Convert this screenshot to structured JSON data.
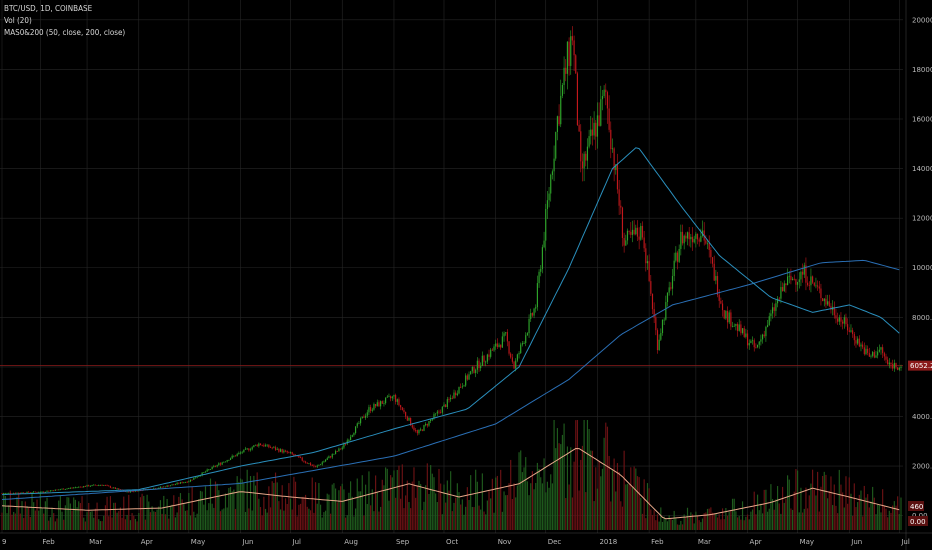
{
  "legend": {
    "symbol": "BTC/USD, 1D, COINBASE",
    "volume": "Vol (20)",
    "ma": "MAS0&200 (50, close, 200, close)"
  },
  "colors": {
    "background": "#000000",
    "up": "#2fa52b",
    "down": "#c2181c",
    "ma50": "#2a8fbd",
    "ma200": "#2a6fb5",
    "vol_ma": "#e8a88a",
    "price_line": "#8b1a1a",
    "grid": "#262626"
  },
  "chart_data": {
    "type": "candlestick",
    "title": "BTC/USD, 1D, COINBASE",
    "x": {
      "ticks": [
        "9",
        "Feb",
        "Mar",
        "Apr",
        "May",
        "Jun",
        "Jul",
        "Aug",
        "Sep",
        "Oct",
        "Nov",
        "Dec",
        "2018",
        "Feb",
        "Mar",
        "Apr",
        "May",
        "Jun",
        "Jul"
      ],
      "range": [
        "2017-01-09",
        "2018-07-02"
      ]
    },
    "y": {
      "ticks": [
        "20000.00",
        "18000.00",
        "16000.00",
        "14000.00",
        "12000.00",
        "10000.00",
        "8000.00",
        "6000.00",
        "4000.00",
        "2000.00",
        "0.00"
      ],
      "tick_values": [
        20000,
        18000,
        16000,
        14000,
        12000,
        10000,
        8000,
        6000,
        4000,
        2000,
        0
      ],
      "ylim": [
        -700,
        20800
      ]
    },
    "current_price": {
      "value": 6052,
      "label": "6052.20"
    },
    "volume_badges": [
      "460",
      "0.00"
    ],
    "price_anchors": [
      [
        "2017-01-09",
        900
      ],
      [
        "2017-02-01",
        960
      ],
      [
        "2017-03-01",
        1200
      ],
      [
        "2017-03-10",
        1250
      ],
      [
        "2017-03-25",
        950
      ],
      [
        "2017-04-15",
        1150
      ],
      [
        "2017-05-01",
        1400
      ],
      [
        "2017-05-25",
        2300
      ],
      [
        "2017-06-12",
        2900
      ],
      [
        "2017-07-01",
        2500
      ],
      [
        "2017-07-16",
        1950
      ],
      [
        "2017-08-01",
        2750
      ],
      [
        "2017-08-17",
        4300
      ],
      [
        "2017-09-01",
        4800
      ],
      [
        "2017-09-15",
        3300
      ],
      [
        "2017-10-01",
        4400
      ],
      [
        "2017-10-20",
        6000
      ],
      [
        "2017-11-07",
        7200
      ],
      [
        "2017-11-12",
        6000
      ],
      [
        "2017-11-25",
        8500
      ],
      [
        "2017-12-08",
        16000
      ],
      [
        "2017-12-17",
        19500
      ],
      [
        "2017-12-22",
        13800
      ],
      [
        "2018-01-06",
        17000
      ],
      [
        "2018-01-17",
        11000
      ],
      [
        "2018-01-28",
        11500
      ],
      [
        "2018-02-06",
        6900
      ],
      [
        "2018-02-20",
        11200
      ],
      [
        "2018-03-05",
        11500
      ],
      [
        "2018-03-18",
        8200
      ],
      [
        "2018-04-06",
        6700
      ],
      [
        "2018-04-24",
        9400
      ],
      [
        "2018-05-05",
        9800
      ],
      [
        "2018-05-20",
        8500
      ],
      [
        "2018-06-01",
        7500
      ],
      [
        "2018-06-13",
        6400
      ],
      [
        "2018-06-20",
        6700
      ],
      [
        "2018-06-24",
        6100
      ],
      [
        "2018-07-02",
        6052
      ]
    ],
    "series": [
      {
        "name": "MA 50",
        "values": [
          [
            "2017-01-09",
            850
          ],
          [
            "2017-04-01",
            1050
          ],
          [
            "2017-06-01",
            2000
          ],
          [
            "2017-07-15",
            2550
          ],
          [
            "2017-09-01",
            3500
          ],
          [
            "2017-10-15",
            4300
          ],
          [
            "2017-11-15",
            6000
          ],
          [
            "2017-12-15",
            10000
          ],
          [
            "2018-01-10",
            14000
          ],
          [
            "2018-01-25",
            14900
          ],
          [
            "2018-02-20",
            12500
          ],
          [
            "2018-03-15",
            10500
          ],
          [
            "2018-04-15",
            8800
          ],
          [
            "2018-05-10",
            8200
          ],
          [
            "2018-06-01",
            8500
          ],
          [
            "2018-06-20",
            8000
          ],
          [
            "2018-07-02",
            7300
          ]
        ]
      },
      {
        "name": "MA 200",
        "values": [
          [
            "2017-01-09",
            650
          ],
          [
            "2017-06-01",
            1300
          ],
          [
            "2017-09-01",
            2400
          ],
          [
            "2017-11-01",
            3700
          ],
          [
            "2017-12-15",
            5500
          ],
          [
            "2018-01-15",
            7300
          ],
          [
            "2018-02-15",
            8500
          ],
          [
            "2018-04-01",
            9300
          ],
          [
            "2018-05-15",
            10200
          ],
          [
            "2018-06-10",
            10300
          ],
          [
            "2018-07-02",
            9900
          ]
        ]
      }
    ],
    "volume_ma_anchors": [
      [
        "2017-01-09",
        0.22
      ],
      [
        "2017-03-01",
        0.18
      ],
      [
        "2017-04-15",
        0.2
      ],
      [
        "2017-06-01",
        0.35
      ],
      [
        "2017-07-01",
        0.3
      ],
      [
        "2017-08-01",
        0.26
      ],
      [
        "2017-09-10",
        0.42
      ],
      [
        "2017-10-10",
        0.3
      ],
      [
        "2017-11-15",
        0.42
      ],
      [
        "2017-12-20",
        0.75
      ],
      [
        "2018-01-15",
        0.5
      ],
      [
        "2018-02-10",
        0.1
      ],
      [
        "2018-03-10",
        0.14
      ],
      [
        "2018-04-15",
        0.25
      ],
      [
        "2018-05-10",
        0.38
      ],
      [
        "2018-06-01",
        0.3
      ],
      [
        "2018-07-02",
        0.18
      ]
    ],
    "grid": true
  }
}
